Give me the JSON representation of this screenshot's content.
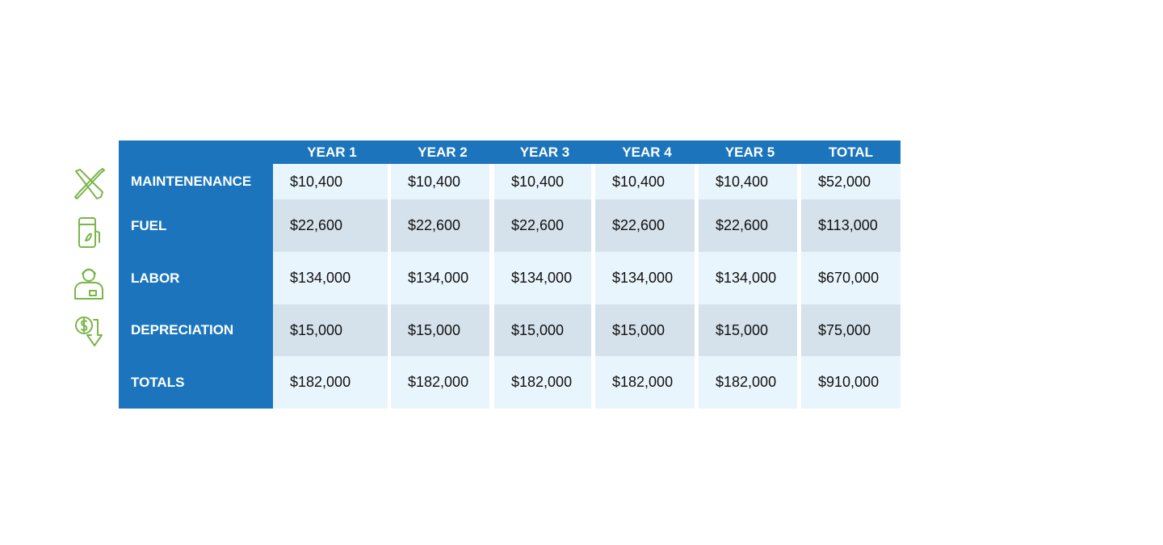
{
  "table": {
    "columns": [
      "YEAR 1",
      "YEAR 2",
      "YEAR 3",
      "YEAR 4",
      "YEAR 5",
      "TOTAL"
    ],
    "rows": [
      {
        "label": "MAINTENENANCE",
        "values": [
          "$10,400",
          "$10,400",
          "$10,400",
          "$10,400",
          "$10,400",
          "$52,000"
        ]
      },
      {
        "label": "FUEL",
        "values": [
          "$22,600",
          "$22,600",
          "$22,600",
          "$22,600",
          "$22,600",
          "$113,000"
        ]
      },
      {
        "label": "LABOR",
        "values": [
          "$134,000",
          "$134,000",
          "$134,000",
          "$134,000",
          "$134,000",
          "$670,000"
        ]
      },
      {
        "label": "DEPRECIATION",
        "values": [
          "$15,000",
          "$15,000",
          "$15,000",
          "$15,000",
          "$15,000",
          "$75,000"
        ]
      },
      {
        "label": "TOTALS",
        "values": [
          "$182,000",
          "$182,000",
          "$182,000",
          "$182,000",
          "$182,000",
          "$910,000"
        ]
      }
    ]
  }
}
